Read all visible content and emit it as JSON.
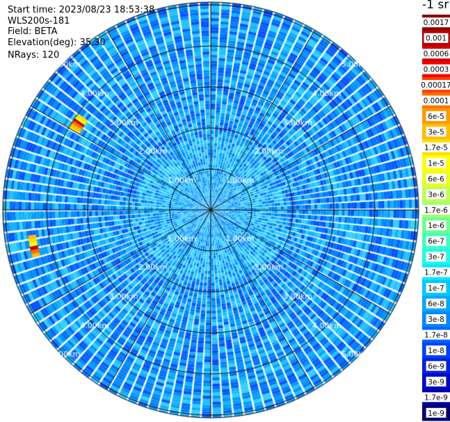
{
  "header": {
    "start_time": "Start time: 2023/08/23 18:53:38",
    "instrument": "WLS200s-181",
    "field": "Field: BETA",
    "elevation": "Elevation(deg): 35.30",
    "nrays": "NRays: 120"
  },
  "colorbar": {
    "unit": "-1 sr",
    "labels": [
      "0.0017",
      "0.001",
      "0.0006",
      "0.0003",
      "0.00017",
      "0.0001",
      "6e-5",
      "3e-5",
      "1.7e-5",
      "1e-5",
      "6e-6",
      "3e-6",
      "1.7e-6",
      "1e-6",
      "6e-7",
      "3e-7",
      "1.7e-7",
      "1e-7",
      "6e-8",
      "3e-8",
      "1.7e-8",
      "1e-8",
      "6e-9",
      "3e-9",
      "1.7e-9",
      "1e-9"
    ],
    "colors": [
      "#8b0000",
      "#b00000",
      "#d40000",
      "#f40000",
      "#ff4000",
      "#ff7000",
      "#ff9a00",
      "#ffbe00",
      "#ffe000",
      "#ffff00",
      "#e8ff20",
      "#c0ff50",
      "#a0ff70",
      "#70ff90",
      "#40ffc0",
      "#20f8e8",
      "#00e8ff",
      "#00c8ff",
      "#00a8ff",
      "#0088ff",
      "#0064ff",
      "#0040ff",
      "#0020e0",
      "#0008c8",
      "#0000a0",
      "#000070"
    ]
  },
  "chart_data": {
    "type": "ppi-polar-heatmap",
    "field": "BETA",
    "elevation_deg": 35.3,
    "nrays": 120,
    "range_rings_km": [
      1.0,
      2.0,
      3.0,
      4.0,
      5.0
    ],
    "ring_labels": [
      "1.00km",
      "2.00km",
      "3.00km",
      "4.00km",
      "5.00km"
    ],
    "azimuth_grid_deg": [
      0,
      30,
      60,
      90,
      120,
      150,
      180,
      210,
      240,
      270,
      300,
      330
    ],
    "max_range_km": 5.2,
    "background_level": "1e-7",
    "features": [
      {
        "azimuth_deg_from": 300,
        "azimuth_deg_to": 306,
        "range_km_from": 3.7,
        "range_km_to": 4.0,
        "level": "1e-5 to 1e-4"
      },
      {
        "azimuth_deg_from": 255,
        "azimuth_deg_to": 262,
        "range_km_from": 4.3,
        "range_km_to": 4.5,
        "level": "1.7e-5"
      }
    ]
  }
}
